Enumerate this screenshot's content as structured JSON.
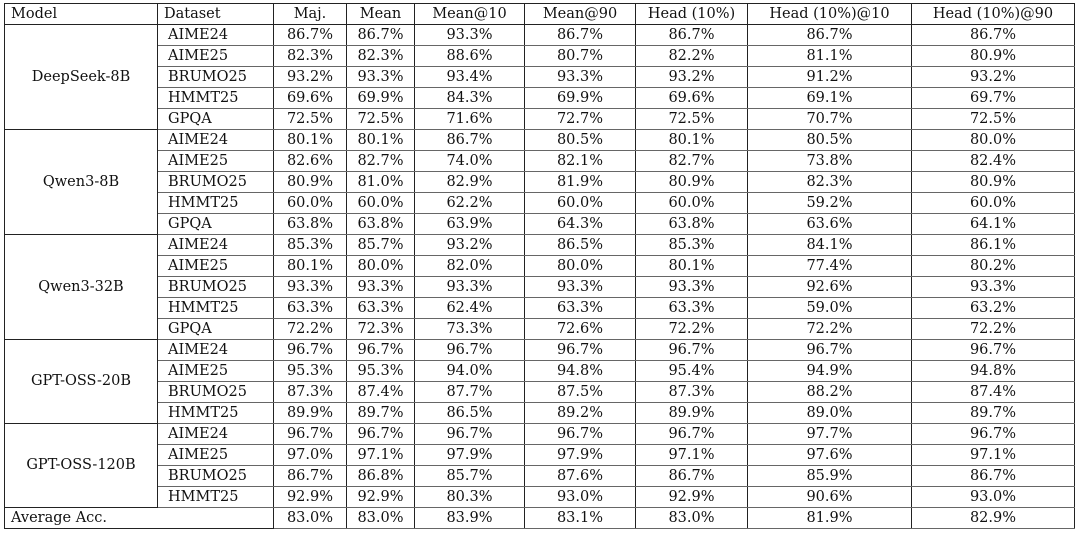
{
  "headers": [
    "Model",
    "Dataset",
    "Maj.",
    "Mean",
    "Mean@10",
    "Mean@90",
    "Head (10%)",
    "Head (10%)@10",
    "Head (10%)@90"
  ],
  "groups": [
    {
      "model": "DeepSeek-8B",
      "rows": [
        {
          "dataset": "AIME24",
          "values": [
            "86.7%",
            "86.7%",
            "93.3%",
            "86.7%",
            "86.7%",
            "86.7%",
            "86.7%"
          ]
        },
        {
          "dataset": "AIME25",
          "values": [
            "82.3%",
            "82.3%",
            "88.6%",
            "80.7%",
            "82.2%",
            "81.1%",
            "80.9%"
          ]
        },
        {
          "dataset": "BRUMO25",
          "values": [
            "93.2%",
            "93.3%",
            "93.4%",
            "93.3%",
            "93.2%",
            "91.2%",
            "93.2%"
          ]
        },
        {
          "dataset": "HMMT25",
          "values": [
            "69.6%",
            "69.9%",
            "84.3%",
            "69.9%",
            "69.6%",
            "69.1%",
            "69.7%"
          ]
        },
        {
          "dataset": "GPQA",
          "values": [
            "72.5%",
            "72.5%",
            "71.6%",
            "72.7%",
            "72.5%",
            "70.7%",
            "72.5%"
          ]
        }
      ]
    },
    {
      "model": "Qwen3-8B",
      "rows": [
        {
          "dataset": "AIME24",
          "values": [
            "80.1%",
            "80.1%",
            "86.7%",
            "80.5%",
            "80.1%",
            "80.5%",
            "80.0%"
          ]
        },
        {
          "dataset": "AIME25",
          "values": [
            "82.6%",
            "82.7%",
            "74.0%",
            "82.1%",
            "82.7%",
            "73.8%",
            "82.4%"
          ]
        },
        {
          "dataset": "BRUMO25",
          "values": [
            "80.9%",
            "81.0%",
            "82.9%",
            "81.9%",
            "80.9%",
            "82.3%",
            "80.9%"
          ]
        },
        {
          "dataset": "HMMT25",
          "values": [
            "60.0%",
            "60.0%",
            "62.2%",
            "60.0%",
            "60.0%",
            "59.2%",
            "60.0%"
          ]
        },
        {
          "dataset": "GPQA",
          "values": [
            "63.8%",
            "63.8%",
            "63.9%",
            "64.3%",
            "63.8%",
            "63.6%",
            "64.1%"
          ]
        }
      ]
    },
    {
      "model": "Qwen3-32B",
      "rows": [
        {
          "dataset": "AIME24",
          "values": [
            "85.3%",
            "85.7%",
            "93.2%",
            "86.5%",
            "85.3%",
            "84.1%",
            "86.1%"
          ]
        },
        {
          "dataset": "AIME25",
          "values": [
            "80.1%",
            "80.0%",
            "82.0%",
            "80.0%",
            "80.1%",
            "77.4%",
            "80.2%"
          ]
        },
        {
          "dataset": "BRUMO25",
          "values": [
            "93.3%",
            "93.3%",
            "93.3%",
            "93.3%",
            "93.3%",
            "92.6%",
            "93.3%"
          ]
        },
        {
          "dataset": "HMMT25",
          "values": [
            "63.3%",
            "63.3%",
            "62.4%",
            "63.3%",
            "63.3%",
            "59.0%",
            "63.2%"
          ]
        },
        {
          "dataset": "GPQA",
          "values": [
            "72.2%",
            "72.3%",
            "73.3%",
            "72.6%",
            "72.2%",
            "72.2%",
            "72.2%"
          ]
        }
      ]
    },
    {
      "model": "GPT-OSS-20B",
      "rows": [
        {
          "dataset": "AIME24",
          "values": [
            "96.7%",
            "96.7%",
            "96.7%",
            "96.7%",
            "96.7%",
            "96.7%",
            "96.7%"
          ]
        },
        {
          "dataset": "AIME25",
          "values": [
            "95.3%",
            "95.3%",
            "94.0%",
            "94.8%",
            "95.4%",
            "94.9%",
            "94.8%"
          ]
        },
        {
          "dataset": "BRUMO25",
          "values": [
            "87.3%",
            "87.4%",
            "87.7%",
            "87.5%",
            "87.3%",
            "88.2%",
            "87.4%"
          ]
        },
        {
          "dataset": "HMMT25",
          "values": [
            "89.9%",
            "89.7%",
            "86.5%",
            "89.2%",
            "89.9%",
            "89.0%",
            "89.7%"
          ]
        }
      ]
    },
    {
      "model": "GPT-OSS-120B",
      "rows": [
        {
          "dataset": "AIME24",
          "values": [
            "96.7%",
            "96.7%",
            "96.7%",
            "96.7%",
            "96.7%",
            "97.7%",
            "96.7%"
          ]
        },
        {
          "dataset": "AIME25",
          "values": [
            "97.0%",
            "97.1%",
            "97.9%",
            "97.9%",
            "97.1%",
            "97.6%",
            "97.1%"
          ]
        },
        {
          "dataset": "BRUMO25",
          "values": [
            "86.7%",
            "86.8%",
            "85.7%",
            "87.6%",
            "86.7%",
            "85.9%",
            "86.7%"
          ]
        },
        {
          "dataset": "HMMT25",
          "values": [
            "92.9%",
            "92.9%",
            "80.3%",
            "93.0%",
            "92.9%",
            "90.6%",
            "93.0%"
          ]
        }
      ]
    }
  ],
  "average": {
    "label": "Average Acc.",
    "values": [
      "83.0%",
      "83.0%",
      "83.9%",
      "83.1%",
      "83.0%",
      "81.9%",
      "82.9%"
    ]
  }
}
